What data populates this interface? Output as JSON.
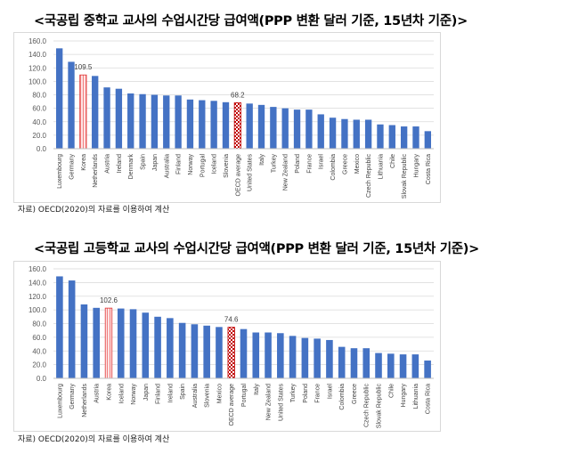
{
  "chart_data": [
    {
      "type": "bar",
      "title": "<국공립 중학교 교사의 수업시간당 급여액(PPP 변환 달러 기준, 15년차 기준)>",
      "source": "자료) OECD(2020)의 자료를 이용하여 계산",
      "xlabel": "",
      "ylabel": "",
      "ylim": [
        0,
        160
      ],
      "yticks": [
        "0.0",
        "20.0",
        "40.0",
        "60.0",
        "80.0",
        "100.0",
        "120.0",
        "140.0",
        "160.0"
      ],
      "grid": true,
      "categories": [
        "Luxembourg",
        "Germany",
        "Korea",
        "Netherlands",
        "Austria",
        "Ireland",
        "Denmark",
        "Spain",
        "Japan",
        "Australia",
        "Finland",
        "Norway",
        "Portugal",
        "Iceland",
        "Slovenia",
        "OECD average",
        "United States",
        "Italy",
        "Turkey",
        "New Zealand",
        "Poland",
        "France",
        "Israel",
        "Colombia",
        "Greece",
        "Mexico",
        "Czech Republic",
        "Lithuania",
        "Chile",
        "Slovak Republic",
        "Hungary",
        "Costa Rica"
      ],
      "values": [
        149,
        129,
        109.5,
        108,
        91,
        89,
        82,
        81,
        80,
        79,
        79,
        73,
        72,
        71,
        69,
        68.2,
        67,
        65,
        62,
        60,
        58,
        58,
        51,
        46,
        44,
        43,
        43,
        36,
        35,
        33,
        33,
        26
      ],
      "highlights": {
        "Korea": "109.5",
        "OECD average": "68.2"
      },
      "colors": {
        "bar": "#4472c4",
        "korea": "#f8c9c9",
        "oecd": "#c00000"
      }
    },
    {
      "type": "bar",
      "title": "<국공립 고등학교 교사의 수업시간당 급여액(PPP 변환 달러 기준, 15년차 기준)>",
      "source": "자료) OECD(2020)의 자료를 이용하여 계산",
      "xlabel": "",
      "ylabel": "",
      "ylim": [
        0,
        160
      ],
      "yticks": [
        "0.0",
        "20.0",
        "40.0",
        "60.0",
        "80.0",
        "100.0",
        "120.0",
        "140.0",
        "160.0"
      ],
      "grid": true,
      "categories": [
        "Luxembourg",
        "Germany",
        "Netherlands",
        "Austria",
        "Korea",
        "Iceland",
        "Norway",
        "Japan",
        "Finland",
        "Ireland",
        "Spain",
        "Australia",
        "Slovenia",
        "Mexico",
        "OECD average",
        "Portugal",
        "Italy",
        "New Zealand",
        "United States",
        "Turkey",
        "Poland",
        "France",
        "Israel",
        "Colombia",
        "Greece",
        "Czech Republic",
        "Slovak Republic",
        "Chile",
        "Hungary",
        "Lithuania",
        "Costa Rica"
      ],
      "values": [
        149,
        143,
        108,
        103,
        102.6,
        102,
        101,
        96,
        90,
        88,
        81,
        79,
        77,
        75,
        74.6,
        72,
        67,
        67,
        66,
        62,
        59,
        58,
        56,
        46,
        44,
        44,
        37,
        36,
        35,
        35,
        26
      ],
      "highlights": {
        "Korea": "102.6",
        "OECD average": "74.6"
      },
      "colors": {
        "bar": "#4472c4",
        "korea": "#f8c9c9",
        "oecd": "#c00000"
      }
    }
  ]
}
